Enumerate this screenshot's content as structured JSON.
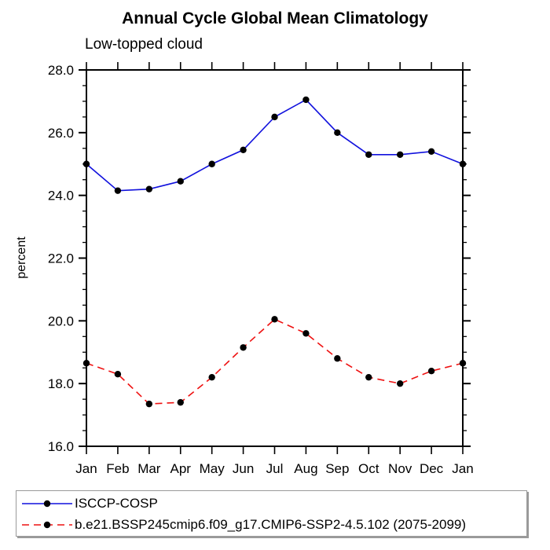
{
  "chart_data": {
    "type": "line",
    "title": "Annual Cycle Global Mean Climatology",
    "subtitle": "Low-topped cloud",
    "ylabel": "percent",
    "categories": [
      "Jan",
      "Feb",
      "Mar",
      "Apr",
      "May",
      "Jun",
      "Jul",
      "Aug",
      "Sep",
      "Oct",
      "Nov",
      "Dec",
      "Jan"
    ],
    "ylim": [
      16.0,
      28.0
    ],
    "ytick_major_interval": 2.0,
    "ytick_minor_interval": 0.5,
    "ytick_labels": [
      "16.0",
      "18.0",
      "20.0",
      "22.0",
      "24.0",
      "26.0",
      "28.0"
    ],
    "grid": "off",
    "legend_position": "bottom-left",
    "frame_color": "#000000",
    "marker_color": "#000000",
    "series": [
      {
        "name": "ISCCP-COSP",
        "color": "#1111dd",
        "line_style": "solid",
        "marker": "circle",
        "values": [
          25.0,
          24.15,
          24.2,
          24.45,
          25.0,
          25.45,
          26.5,
          27.05,
          26.0,
          25.3,
          25.3,
          25.4,
          25.0
        ]
      },
      {
        "name": "b.e21.BSSP245cmip6.f09_g17.CMIP6-SSP2-4.5.102 (2075-2099)",
        "color": "#ee1111",
        "line_style": "dashed",
        "marker": "circle",
        "values": [
          18.65,
          18.3,
          17.35,
          17.4,
          18.2,
          19.15,
          20.05,
          19.6,
          18.8,
          18.2,
          18.0,
          18.4,
          18.65
        ]
      }
    ]
  }
}
